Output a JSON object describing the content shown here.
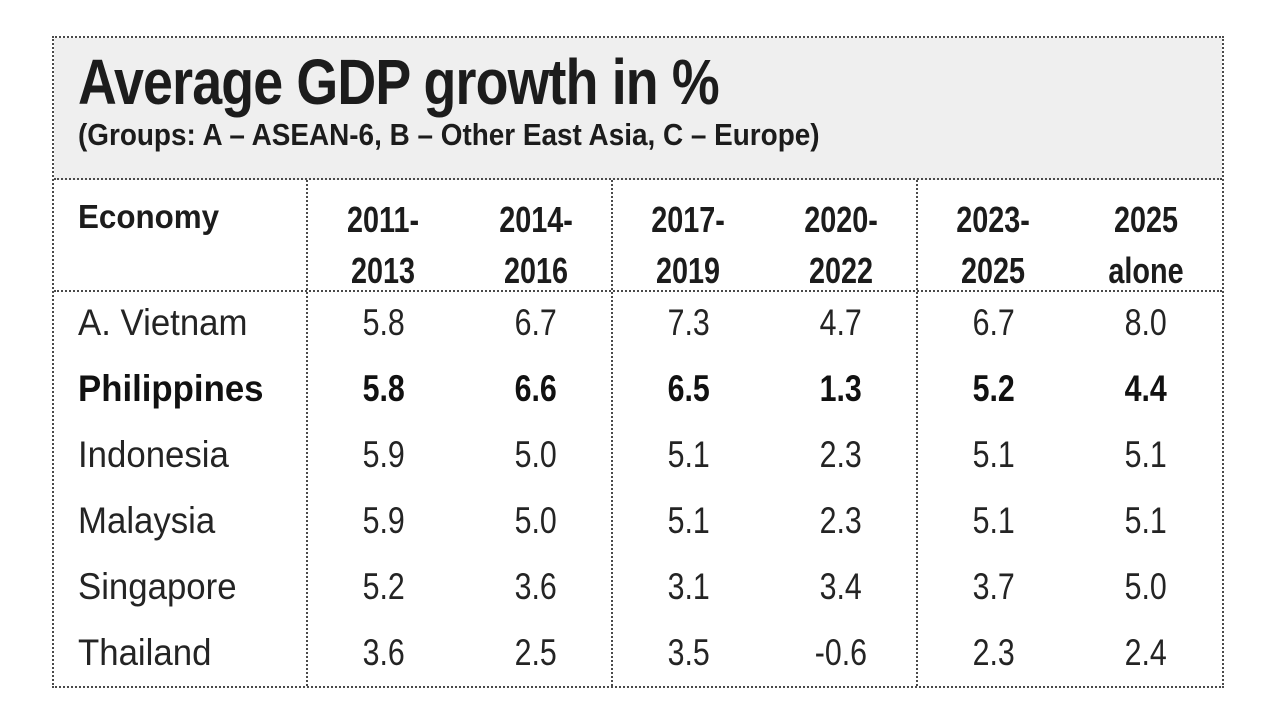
{
  "chart_data": {
    "type": "table",
    "title": "Average GDP growth in %",
    "subtitle": "(Groups: A – ASEAN-6, B – Other East Asia, C – Europe)",
    "columns": [
      "Economy",
      "2011-2013",
      "2014-2016",
      "2017-2019",
      "2020-2022",
      "2023-2025",
      "2025 alone"
    ],
    "header": {
      "economy": "Economy",
      "periods": [
        {
          "l1": "2011-",
          "l2": "2013"
        },
        {
          "l1": "2014-",
          "l2": "2016"
        },
        {
          "l1": "2017-",
          "l2": "2019"
        },
        {
          "l1": "2020-",
          "l2": "2022"
        },
        {
          "l1": "2023-",
          "l2": "2025"
        },
        {
          "l1": "2025",
          "l2": "alone"
        }
      ]
    },
    "rows": [
      {
        "economy": "A. Vietnam",
        "highlight": false,
        "values": [
          "5.8",
          "6.7",
          "7.3",
          "4.7",
          "6.7",
          "8.0"
        ]
      },
      {
        "economy": "Philippines",
        "highlight": true,
        "values": [
          "5.8",
          "6.6",
          "6.5",
          "1.3",
          "5.2",
          "4.4"
        ]
      },
      {
        "economy": "Indonesia",
        "highlight": false,
        "values": [
          "5.9",
          "5.0",
          "5.1",
          "2.3",
          "5.1",
          "5.1"
        ]
      },
      {
        "economy": "Malaysia",
        "highlight": false,
        "values": [
          "5.9",
          "5.0",
          "5.1",
          "2.3",
          "5.1",
          "5.1"
        ]
      },
      {
        "economy": "Singapore",
        "highlight": false,
        "values": [
          "5.2",
          "3.6",
          "3.1",
          "3.4",
          "3.7",
          "5.0"
        ]
      },
      {
        "economy": "Thailand",
        "highlight": false,
        "values": [
          "3.6",
          "2.5",
          "3.5",
          "-0.6",
          "2.3",
          "2.4"
        ]
      }
    ]
  },
  "colors": {
    "title_background": "#efefef",
    "border": "#4a4a4a",
    "text": "#1c1c1c"
  }
}
